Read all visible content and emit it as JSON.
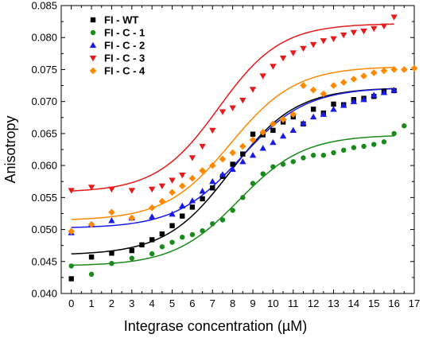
{
  "chart_data": {
    "type": "scatter",
    "xlabel": "Integrase concentration (µM)",
    "ylabel": "Anisotropy",
    "xlim": [
      -0.5,
      17
    ],
    "ylim": [
      0.04,
      0.085
    ],
    "xticks": [
      0,
      1,
      2,
      3,
      4,
      5,
      6,
      7,
      8,
      9,
      10,
      11,
      12,
      13,
      14,
      15,
      16,
      17
    ],
    "xtick_labels": [
      "0",
      "1",
      "2",
      "3",
      "4",
      "5",
      "6",
      "7",
      "8",
      "9",
      "10",
      "11",
      "12",
      "13",
      "14",
      "15",
      "16",
      "17"
    ],
    "yticks": [
      0.04,
      0.045,
      0.05,
      0.055,
      0.06,
      0.065,
      0.07,
      0.075,
      0.08,
      0.085
    ],
    "ytick_labels": [
      "0.040",
      "0.045",
      "0.050",
      "0.055",
      "0.060",
      "0.065",
      "0.070",
      "0.075",
      "0.080",
      "0.085"
    ],
    "grid": false,
    "legend_position": "top-left",
    "series": [
      {
        "name": "FI - WT",
        "color": "#000000",
        "marker": "square",
        "fit": {
          "bottom": 0.046,
          "top": 0.0722,
          "ec50": 7.9,
          "slope": 0.62
        },
        "points": [
          [
            0,
            0.0423
          ],
          [
            1,
            0.0457
          ],
          [
            2,
            0.0463
          ],
          [
            3,
            0.0467
          ],
          [
            3.5,
            0.0476
          ],
          [
            4,
            0.0484
          ],
          [
            4.5,
            0.0493
          ],
          [
            5,
            0.0506
          ],
          [
            5.5,
            0.0521
          ],
          [
            6,
            0.0535
          ],
          [
            6.5,
            0.0548
          ],
          [
            7,
            0.0565
          ],
          [
            7.5,
            0.0583
          ],
          [
            8,
            0.0602
          ],
          [
            8.5,
            0.0618
          ],
          [
            9,
            0.0649
          ],
          [
            9.5,
            0.0648
          ],
          [
            10,
            0.0655
          ],
          [
            10.5,
            0.0668
          ],
          [
            11,
            0.0676
          ],
          [
            11.5,
            0.0665
          ],
          [
            12,
            0.0688
          ],
          [
            12.5,
            0.0682
          ],
          [
            13,
            0.0696
          ],
          [
            13.5,
            0.0695
          ],
          [
            14,
            0.0703
          ],
          [
            14.5,
            0.0705
          ],
          [
            15,
            0.0708
          ],
          [
            15.5,
            0.0716
          ],
          [
            16,
            0.0717
          ]
        ]
      },
      {
        "name": "FI - C - 1",
        "color": "#1a8a1a",
        "marker": "circle",
        "fit": {
          "bottom": 0.0443,
          "top": 0.0648,
          "ec50": 8.3,
          "slope": 0.62
        },
        "points": [
          [
            0,
            0.0443
          ],
          [
            1,
            0.043
          ],
          [
            2,
            0.0447
          ],
          [
            3,
            0.0455
          ],
          [
            4,
            0.0462
          ],
          [
            4.5,
            0.0473
          ],
          [
            5,
            0.048
          ],
          [
            5.5,
            0.0488
          ],
          [
            6,
            0.0492
          ],
          [
            6.5,
            0.0498
          ],
          [
            7,
            0.0509
          ],
          [
            7.5,
            0.0515
          ],
          [
            8,
            0.053
          ],
          [
            8.5,
            0.055
          ],
          [
            9,
            0.0572
          ],
          [
            9.5,
            0.0587
          ],
          [
            10,
            0.0598
          ],
          [
            10.5,
            0.0602
          ],
          [
            11,
            0.0606
          ],
          [
            11.5,
            0.0612
          ],
          [
            12,
            0.0616
          ],
          [
            12.5,
            0.0616
          ],
          [
            13,
            0.062
          ],
          [
            13.5,
            0.0624
          ],
          [
            14,
            0.0628
          ],
          [
            14.5,
            0.063
          ],
          [
            15,
            0.0633
          ],
          [
            15.5,
            0.0637
          ],
          [
            16,
            0.065
          ],
          [
            16.5,
            0.0662
          ]
        ]
      },
      {
        "name": "FI - C - 2",
        "color": "#1a1ae6",
        "marker": "triangle",
        "fit": {
          "bottom": 0.0502,
          "top": 0.0722,
          "ec50": 8.4,
          "slope": 0.62
        },
        "points": [
          [
            0,
            0.0495
          ],
          [
            1,
            0.0508
          ],
          [
            2,
            0.0514
          ],
          [
            3,
            0.0518
          ],
          [
            4,
            0.052
          ],
          [
            5,
            0.0524
          ],
          [
            5.5,
            0.0537
          ],
          [
            6,
            0.0545
          ],
          [
            6.5,
            0.056
          ],
          [
            7,
            0.0575
          ],
          [
            7.5,
            0.0586
          ],
          [
            8,
            0.0594
          ],
          [
            8.5,
            0.0606
          ],
          [
            9,
            0.0616
          ],
          [
            9.5,
            0.0627
          ],
          [
            10,
            0.0636
          ],
          [
            10.5,
            0.0646
          ],
          [
            11,
            0.0655
          ],
          [
            11.5,
            0.0666
          ],
          [
            12,
            0.0676
          ],
          [
            12.5,
            0.068
          ],
          [
            13,
            0.0688
          ],
          [
            13.5,
            0.0694
          ],
          [
            14,
            0.07
          ],
          [
            14.5,
            0.0703
          ],
          [
            15,
            0.071
          ],
          [
            15.5,
            0.0714
          ],
          [
            16,
            0.0718
          ]
        ]
      },
      {
        "name": "FI - C - 3",
        "color": "#e61a1a",
        "marker": "triangle-down",
        "fit": {
          "bottom": 0.0558,
          "top": 0.0822,
          "ec50": 7.3,
          "slope": 0.65
        },
        "points": [
          [
            0,
            0.0561
          ],
          [
            1,
            0.0566
          ],
          [
            2,
            0.0563
          ],
          [
            3,
            0.0561
          ],
          [
            4,
            0.0563
          ],
          [
            4.5,
            0.0568
          ],
          [
            5,
            0.0577
          ],
          [
            5.5,
            0.0585
          ],
          [
            6,
            0.0612
          ],
          [
            6.5,
            0.063
          ],
          [
            7,
            0.0655
          ],
          [
            7.5,
            0.0684
          ],
          [
            8,
            0.069
          ],
          [
            8.5,
            0.0702
          ],
          [
            9,
            0.0719
          ],
          [
            9.5,
            0.074
          ],
          [
            10,
            0.0755
          ],
          [
            10.5,
            0.0768
          ],
          [
            11,
            0.0776
          ],
          [
            11.5,
            0.0783
          ],
          [
            12,
            0.0789
          ],
          [
            12.5,
            0.0795
          ],
          [
            13,
            0.0798
          ],
          [
            13.5,
            0.0804
          ],
          [
            14,
            0.0808
          ],
          [
            14.5,
            0.081
          ],
          [
            15,
            0.0814
          ],
          [
            15.5,
            0.0818
          ],
          [
            16,
            0.0832
          ]
        ]
      },
      {
        "name": "FI - C - 4",
        "color": "#ff8800",
        "marker": "diamond",
        "fit": {
          "bottom": 0.0514,
          "top": 0.0755,
          "ec50": 7.9,
          "slope": 0.62
        },
        "points": [
          [
            0,
            0.0497
          ],
          [
            1,
            0.0508
          ],
          [
            2,
            0.0527
          ],
          [
            3,
            0.0518
          ],
          [
            4,
            0.0534
          ],
          [
            4.5,
            0.0544
          ],
          [
            5,
            0.0558
          ],
          [
            5.5,
            0.0568
          ],
          [
            6,
            0.058
          ],
          [
            6.5,
            0.0592
          ],
          [
            7,
            0.06
          ],
          [
            7.5,
            0.061
          ],
          [
            8,
            0.062
          ],
          [
            8.5,
            0.063
          ],
          [
            9,
            0.064
          ],
          [
            9.5,
            0.0652
          ],
          [
            10,
            0.0665
          ],
          [
            10.5,
            0.0672
          ],
          [
            11,
            0.068
          ],
          [
            11.5,
            0.0725
          ],
          [
            12,
            0.0718
          ],
          [
            12.5,
            0.0712
          ],
          [
            13,
            0.0725
          ],
          [
            13.5,
            0.073
          ],
          [
            14,
            0.0735
          ],
          [
            14.5,
            0.074
          ],
          [
            15,
            0.0745
          ],
          [
            15.5,
            0.0748
          ],
          [
            16,
            0.075
          ],
          [
            16.5,
            0.075
          ],
          [
            17,
            0.0752
          ]
        ]
      }
    ]
  }
}
